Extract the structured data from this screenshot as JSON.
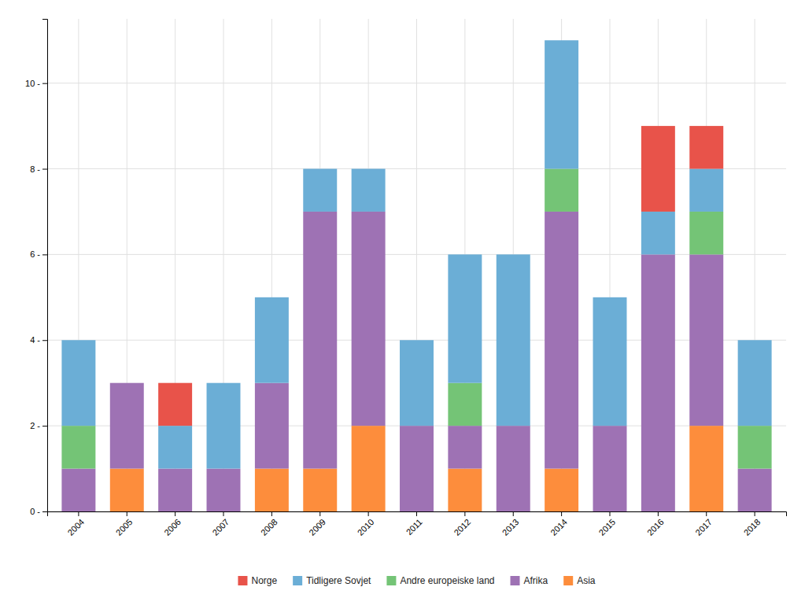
{
  "chart_data": {
    "type": "bar",
    "stacked": true,
    "grid": true,
    "legend": "bottom",
    "categories": [
      "2004",
      "2005",
      "2006",
      "2007",
      "2008",
      "2009",
      "2010",
      "2011",
      "2012",
      "2013",
      "2014",
      "2015",
      "2016",
      "2017",
      "2018"
    ],
    "series": [
      {
        "name": "Asia",
        "color": "#fd8d3c",
        "values": [
          0,
          1,
          0,
          0,
          1,
          1,
          2,
          0,
          1,
          0,
          1,
          0,
          0,
          2,
          0
        ]
      },
      {
        "name": "Afrika",
        "color": "#9e72b4",
        "values": [
          1,
          2,
          1,
          1,
          2,
          6,
          5,
          2,
          1,
          2,
          6,
          2,
          6,
          4,
          1
        ]
      },
      {
        "name": "Andre europeiske land",
        "color": "#74c476",
        "values": [
          1,
          0,
          0,
          0,
          0,
          0,
          0,
          0,
          1,
          0,
          1,
          0,
          0,
          1,
          1
        ]
      },
      {
        "name": "Tidligere Sovjet",
        "color": "#6baed6",
        "values": [
          2,
          0,
          1,
          2,
          2,
          1,
          1,
          2,
          3,
          4,
          3,
          3,
          1,
          1,
          2
        ]
      },
      {
        "name": "Norge",
        "color": "#e8534a",
        "values": [
          0,
          0,
          1,
          0,
          0,
          0,
          0,
          0,
          0,
          0,
          0,
          0,
          2,
          1,
          0
        ]
      }
    ],
    "ylim": [
      0,
      11.5
    ],
    "yticks": [
      {
        "value": 0,
        "label": "0 -"
      },
      {
        "value": 2,
        "label": "2 -"
      },
      {
        "value": 4,
        "label": "4 -"
      },
      {
        "value": 6,
        "label": "6 -"
      },
      {
        "value": 8,
        "label": "8 -"
      },
      {
        "value": 10,
        "label": "10 -"
      }
    ]
  }
}
